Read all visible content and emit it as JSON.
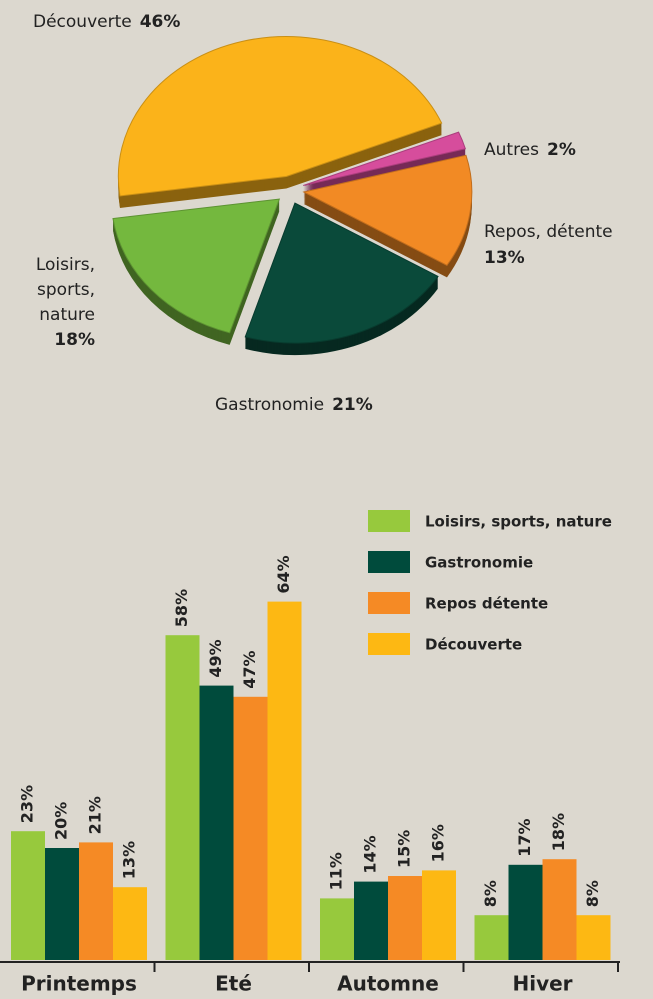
{
  "chart_data": [
    {
      "type": "pie",
      "categories": [
        "Découverte",
        "Autres",
        "Repos, détente",
        "Gastronomie",
        "Loisirs, sports, nature"
      ],
      "values": [
        46,
        2,
        13,
        21,
        18
      ],
      "value_labels": [
        "46%",
        "2%",
        "13%",
        "21%",
        "18%"
      ],
      "colors": [
        "#fbb31a",
        "#d64d9c",
        "#f28a24",
        "#0a4a3a",
        "#74b83e"
      ]
    },
    {
      "type": "bar",
      "categories": [
        "Printemps",
        "Eté",
        "Automne",
        "Hiver"
      ],
      "series": [
        {
          "name": "Loisirs, sports, nature",
          "color": "#97c93d",
          "values": [
            23,
            58,
            11,
            8
          ],
          "value_labels": [
            "23%",
            "58%",
            "11%",
            "8%"
          ]
        },
        {
          "name": "Gastronomie",
          "color": "#004b3c",
          "values": [
            20,
            49,
            14,
            17
          ],
          "value_labels": [
            "20%",
            "49%",
            "14%",
            "17%"
          ]
        },
        {
          "name": "Repos détente",
          "color": "#f58a25",
          "values": [
            21,
            47,
            15,
            18
          ],
          "value_labels": [
            "21%",
            "47%",
            "15%",
            "18%"
          ]
        },
        {
          "name": "Découverte",
          "color": "#fdb813",
          "values": [
            13,
            64,
            16,
            8
          ],
          "value_labels": [
            "13%",
            "64%",
            "16%",
            "8%"
          ]
        }
      ]
    }
  ]
}
